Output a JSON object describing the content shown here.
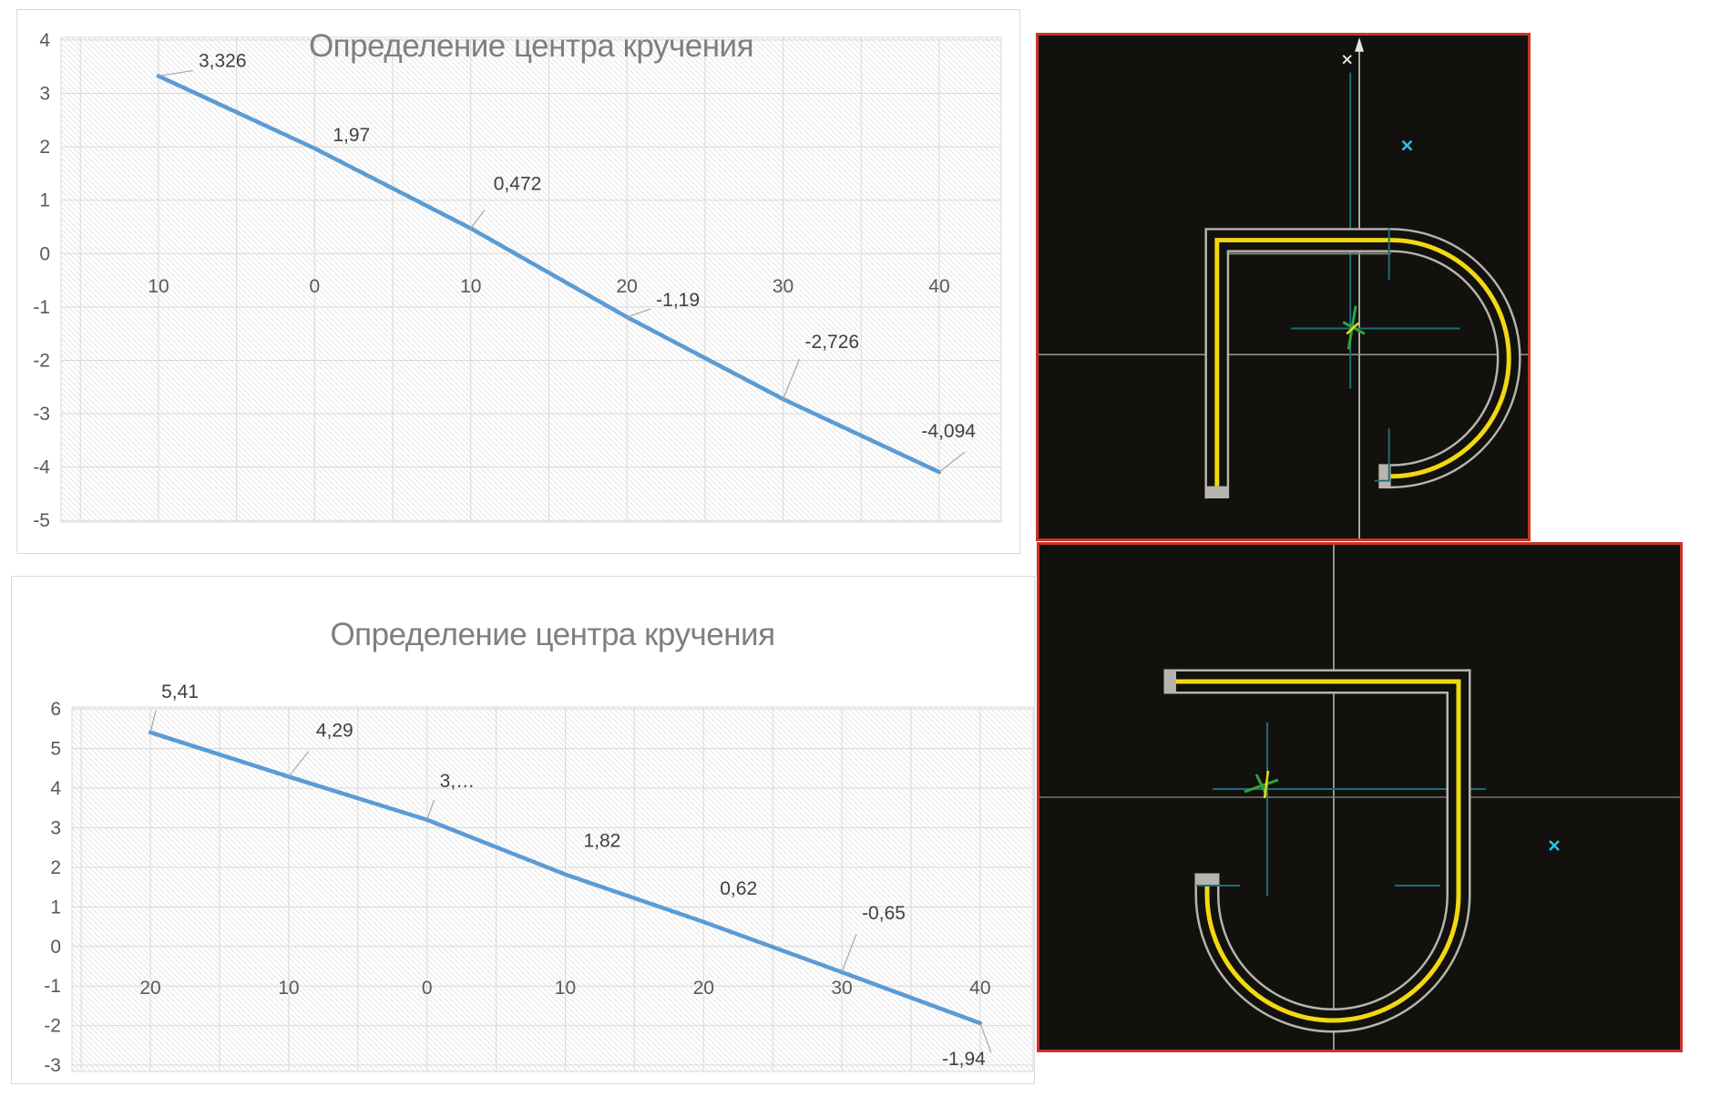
{
  "page": {
    "background": "#ffffff"
  },
  "chart_data": [
    {
      "type": "line",
      "title": "Определение центра кручения",
      "x": [
        -10,
        0,
        10,
        20,
        30,
        40
      ],
      "y": [
        3.326,
        1.97,
        0.472,
        -1.19,
        -2.726,
        -4.094
      ],
      "point_labels": [
        "3,326",
        "1,97",
        "0,472",
        "-1,19",
        "-2,726",
        "-4,094"
      ],
      "x_tick_values": [
        -10,
        0,
        10,
        20,
        30,
        40
      ],
      "x_tick_labels": [
        "10",
        "0",
        "10",
        "20",
        "30",
        "40"
      ],
      "y_tick_values": [
        4,
        3,
        2,
        1,
        0,
        -1,
        -2,
        -3,
        -4,
        -5
      ],
      "y_tick_labels": [
        "4",
        "3",
        "2",
        "1",
        "0",
        "-1",
        "-2",
        "-3",
        "-4",
        "-5"
      ],
      "xlim": [
        -16.24,
        43.97
      ],
      "ylim": [
        -5.03,
        4.05
      ],
      "grid": true,
      "grid_step_x": 5,
      "grid_step_y": 1,
      "legend": false,
      "series_color": "#5b9bd5",
      "xlabel": "",
      "ylabel": ""
    },
    {
      "type": "line",
      "title": "Определение центра кручения",
      "x": [
        -20,
        -10,
        0,
        10,
        20,
        30,
        40
      ],
      "y": [
        5.41,
        4.29,
        3.2,
        1.82,
        0.62,
        -0.65,
        -1.94
      ],
      "point_labels": [
        "5,41",
        "4,29",
        "3,…",
        "1,82",
        "0,62",
        "-0,65",
        "-1,94"
      ],
      "x_tick_values": [
        -20,
        -10,
        0,
        10,
        20,
        30,
        40
      ],
      "x_tick_labels": [
        "20",
        "10",
        "0",
        "10",
        "20",
        "30",
        "40"
      ],
      "y_tick_values": [
        6,
        5,
        4,
        3,
        2,
        1,
        0,
        -1,
        -2,
        -3
      ],
      "y_tick_labels": [
        "6",
        "5",
        "4",
        "3",
        "2",
        "1",
        "0",
        "-1",
        "-2",
        "-3"
      ],
      "xlim": [
        -25.67,
        43.83
      ],
      "ylim": [
        -3.16,
        6.05
      ],
      "grid": true,
      "grid_step_x": 5,
      "grid_step_y": 1,
      "legend": false,
      "series_color": "#5b9bd5",
      "xlabel": "",
      "ylabel": ""
    }
  ],
  "chart_style": {
    "grid_color": "#d9d9d9",
    "hatch_color": "#e4e4e4",
    "tick_color": "#595959",
    "label_color": "#404040",
    "leader_color": "#a6a6a6",
    "title_color": "#7f7f7f"
  },
  "cad_views": [
    {
      "name": "cad-section-view-top",
      "description": "channel-section-with-right-arc",
      "colors": {
        "background": "#12110d",
        "border": "#c9342a",
        "axis": "#8f8f88",
        "axis_bright": "#e8e8e2",
        "guide": "#1b6d7d",
        "outline": "#b5b5ad",
        "ghost": "#84847c",
        "highlight": "#f2d810",
        "marker": "#2ec0e8",
        "snap": "#2fa33c"
      }
    },
    {
      "name": "cad-section-view-bottom",
      "description": "channel-section-with-bottom-arc",
      "colors": {
        "background": "#12110d",
        "border": "#c9342a",
        "axis": "#77766f",
        "axis_bright": "#c9c9c2",
        "guide": "#1b6d7d",
        "outline": "#b5b5ad",
        "ghost": "#76756e",
        "highlight": "#f2d810",
        "marker": "#2ec0e8",
        "snap": "#2fa33c"
      }
    }
  ]
}
